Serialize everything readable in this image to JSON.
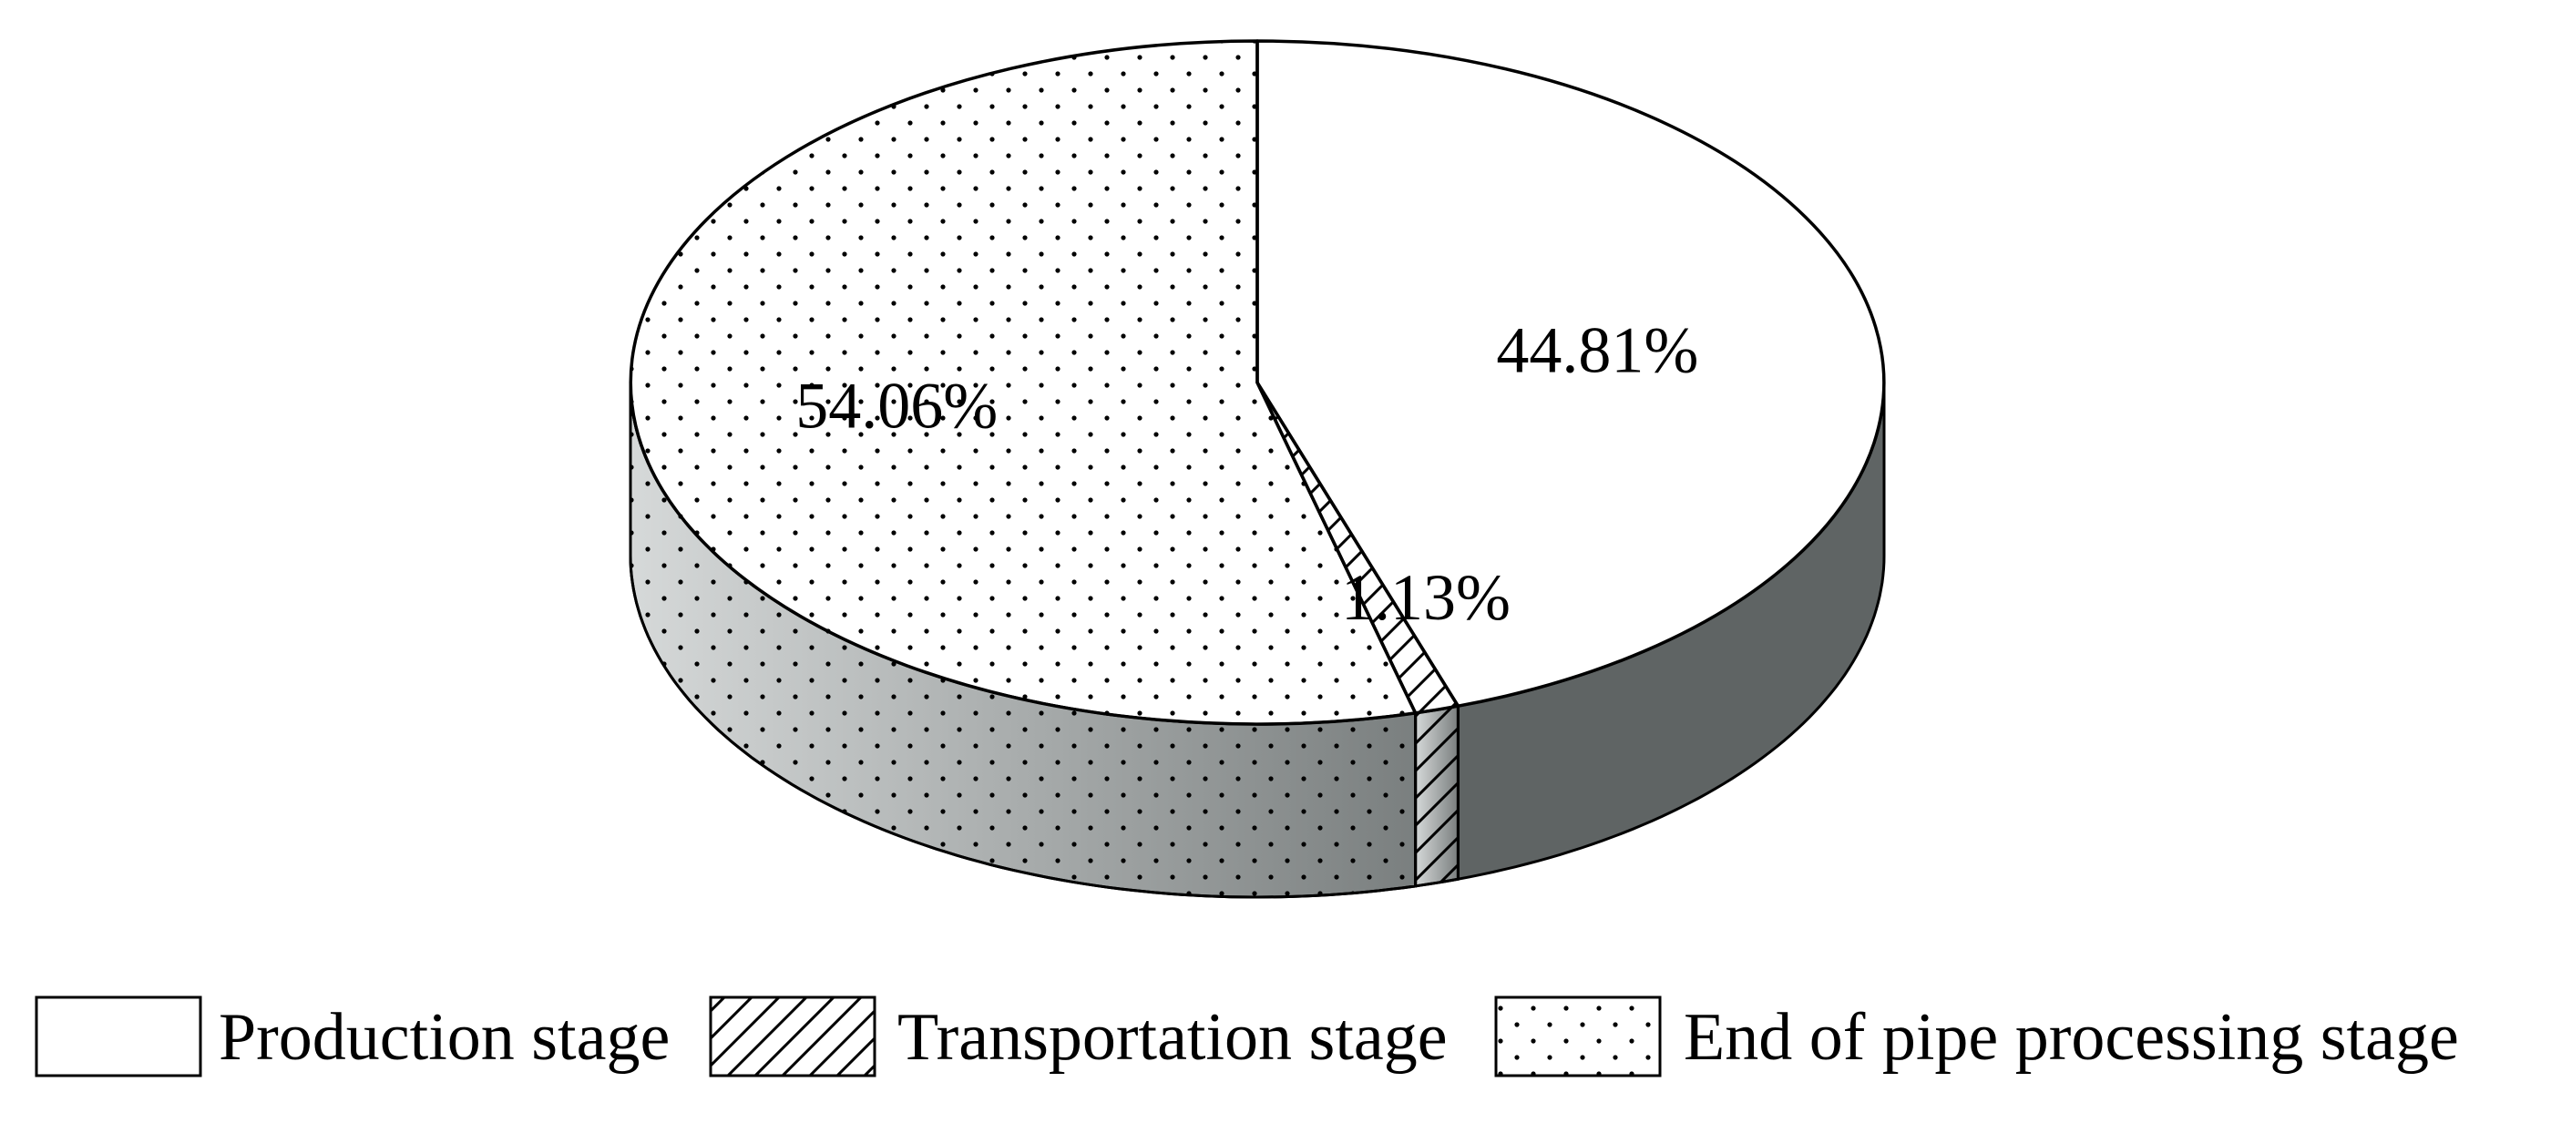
{
  "chart_data": {
    "type": "pie",
    "three_d": true,
    "slices": [
      {
        "label": "Production stage",
        "value": 44.81,
        "display": "44.81%",
        "pattern": "plain"
      },
      {
        "label": "Transportation stage",
        "value": 1.13,
        "display": "1.13%",
        "pattern": "hatch"
      },
      {
        "label": "End of pipe processing stage",
        "value": 54.06,
        "display": "54.06%",
        "pattern": "dots"
      }
    ],
    "legend_position": "bottom",
    "start": "top",
    "direction": "clockwise",
    "colors": {
      "top_face": "#ffffff",
      "outline": "#000000",
      "side_dark": "#5f6464",
      "side_light": "#d4d7d7"
    }
  }
}
